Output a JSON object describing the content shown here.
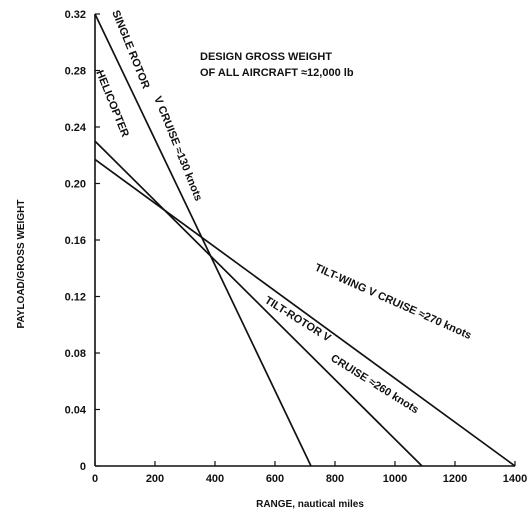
{
  "chart_data": {
    "type": "line",
    "xlabel": "RANGE, nautical miles",
    "ylabel": "PAYLOAD/GROSS WEIGHT",
    "xlim": [
      0,
      1400
    ],
    "ylim": [
      0,
      0.32
    ],
    "x_ticks": [
      "0",
      "200",
      "400",
      "600",
      "800",
      "1000",
      "1200",
      "1400"
    ],
    "y_ticks": [
      "0",
      "0.04",
      "0.08",
      "0.12",
      "0.16",
      "0.20",
      "0.24",
      "0.28",
      "0.32"
    ],
    "grid": false,
    "annotation": [
      "DESIGN GROSS WEIGHT",
      "OF ALL AIRCRAFT ≈12,000 lb"
    ],
    "series": [
      {
        "name": "SINGLE ROTOR HELICOPTER V CRUISE ≈130 knots",
        "x": [
          0,
          720
        ],
        "y": [
          0.32,
          0
        ]
      },
      {
        "name": "TILT-ROTOR V CRUISE ≈260 knots",
        "x": [
          0,
          1090
        ],
        "y": [
          0.23,
          0
        ]
      },
      {
        "name": "TILT-WING V CRUISE ≈270 knots",
        "x": [
          0,
          1400
        ],
        "y": [
          0.217,
          0
        ]
      }
    ],
    "series_labels": [
      {
        "text": "SINGLE ROTOR",
        "series": 0
      },
      {
        "text": "HELICOPTER",
        "series": 0
      },
      {
        "text": "V CRUISE ≈130 knots",
        "series": 0
      },
      {
        "text": "TILT-ROTOR V",
        "series": 1
      },
      {
        "text": "CRUISE ≈260 knots",
        "series": 1
      },
      {
        "text": "TILT-WING V CRUISE ≈270 knots",
        "series": 2
      }
    ]
  }
}
